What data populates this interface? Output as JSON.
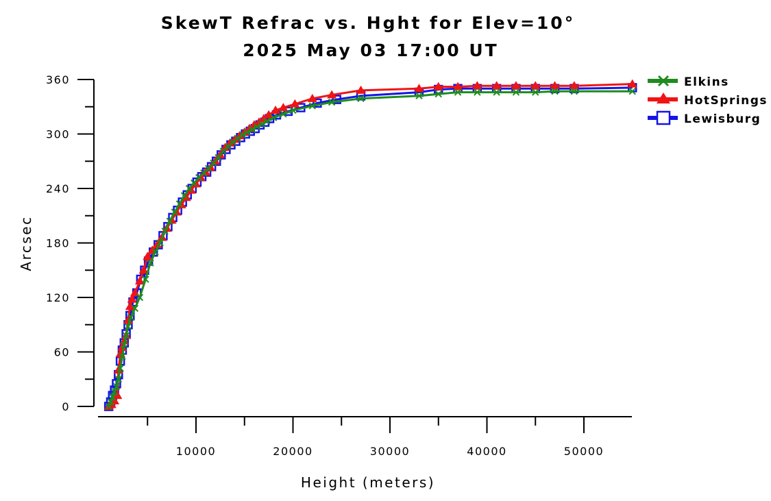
{
  "chart_data": {
    "type": "line",
    "title": "SkewT Refrac vs. Hght for Elev=10°",
    "subtitle": "2025 May 03 17:00 UT",
    "xlabel": "Height (meters)",
    "ylabel": "Arcsec",
    "xlim": [
      500,
      55000
    ],
    "ylim": [
      0,
      360
    ],
    "x_ticks": [
      10000,
      20000,
      30000,
      40000,
      50000
    ],
    "x_tick_labels": [
      "10000",
      "20000",
      "30000",
      "40000",
      "50000"
    ],
    "y_ticks": [
      0,
      60,
      120,
      180,
      240,
      300,
      360
    ],
    "y_tick_labels": [
      "0",
      "60",
      "120",
      "180",
      "240",
      "300",
      "360"
    ],
    "grid": false,
    "legend_position": "top-right, outside plot",
    "series": [
      {
        "name": "Elkins",
        "color": "#1e8c1e",
        "marker": "x",
        "points": [
          [
            1000,
            0
          ],
          [
            1200,
            5
          ],
          [
            1400,
            10
          ],
          [
            1600,
            16
          ],
          [
            1800,
            22
          ],
          [
            2000,
            30
          ],
          [
            2200,
            42
          ],
          [
            2400,
            55
          ],
          [
            2600,
            68
          ],
          [
            2800,
            78
          ],
          [
            3000,
            88
          ],
          [
            3300,
            98
          ],
          [
            3700,
            108
          ],
          [
            4200,
            120
          ],
          [
            4800,
            140
          ],
          [
            5300,
            158
          ],
          [
            5800,
            170
          ],
          [
            6300,
            180
          ],
          [
            6800,
            193
          ],
          [
            7300,
            204
          ],
          [
            7800,
            214
          ],
          [
            8300,
            223
          ],
          [
            8800,
            232
          ],
          [
            9300,
            240
          ],
          [
            9800,
            246
          ],
          [
            10300,
            252
          ],
          [
            10800,
            257
          ],
          [
            11300,
            262
          ],
          [
            11800,
            268
          ],
          [
            12300,
            274
          ],
          [
            12800,
            281
          ],
          [
            13300,
            286
          ],
          [
            13800,
            291
          ],
          [
            14300,
            295
          ],
          [
            14800,
            299
          ],
          [
            15300,
            302
          ],
          [
            15800,
            305
          ],
          [
            16300,
            308
          ],
          [
            16800,
            311
          ],
          [
            17300,
            314
          ],
          [
            18000,
            318
          ],
          [
            19000,
            322
          ],
          [
            20000,
            326
          ],
          [
            22000,
            331
          ],
          [
            24000,
            335
          ],
          [
            27000,
            339
          ],
          [
            33000,
            342
          ],
          [
            35000,
            344
          ],
          [
            37000,
            346
          ],
          [
            39000,
            346
          ],
          [
            41000,
            346
          ],
          [
            43000,
            346
          ],
          [
            45000,
            346
          ],
          [
            47000,
            347
          ],
          [
            49000,
            347
          ],
          [
            55000,
            347
          ]
        ]
      },
      {
        "name": "HotSprings",
        "color": "#f01414",
        "marker": "triangle",
        "points": [
          [
            1000,
            0
          ],
          [
            1300,
            2
          ],
          [
            1600,
            6
          ],
          [
            1900,
            12
          ],
          [
            2000,
            40
          ],
          [
            2200,
            58
          ],
          [
            2400,
            65
          ],
          [
            2600,
            72
          ],
          [
            2800,
            78
          ],
          [
            3000,
            95
          ],
          [
            3200,
            110
          ],
          [
            3400,
            118
          ],
          [
            3700,
            125
          ],
          [
            4200,
            138
          ],
          [
            4600,
            150
          ],
          [
            5000,
            165
          ],
          [
            5500,
            172
          ],
          [
            6000,
            178
          ],
          [
            6500,
            186
          ],
          [
            7000,
            196
          ],
          [
            7500,
            205
          ],
          [
            8000,
            214
          ],
          [
            8500,
            222
          ],
          [
            9000,
            230
          ],
          [
            9500,
            238
          ],
          [
            10000,
            245
          ],
          [
            10500,
            252
          ],
          [
            11000,
            258
          ],
          [
            11500,
            263
          ],
          [
            12000,
            270
          ],
          [
            12500,
            277
          ],
          [
            13000,
            285
          ],
          [
            13500,
            290
          ],
          [
            14000,
            294
          ],
          [
            14500,
            298
          ],
          [
            15000,
            302
          ],
          [
            15500,
            306
          ],
          [
            16000,
            310
          ],
          [
            16500,
            313
          ],
          [
            17000,
            317
          ],
          [
            17500,
            321
          ],
          [
            18200,
            326
          ],
          [
            19000,
            329
          ],
          [
            20200,
            333
          ],
          [
            22000,
            339
          ],
          [
            24000,
            343
          ],
          [
            27000,
            348
          ],
          [
            33000,
            350
          ],
          [
            35000,
            352
          ],
          [
            37000,
            352
          ],
          [
            39000,
            353
          ],
          [
            41000,
            353
          ],
          [
            43000,
            353
          ],
          [
            45000,
            353
          ],
          [
            47000,
            353
          ],
          [
            49000,
            353
          ],
          [
            55000,
            355
          ]
        ]
      },
      {
        "name": "Lewisburg",
        "color": "#1414e6",
        "marker": "square",
        "points": [
          [
            1000,
            0
          ],
          [
            1200,
            5
          ],
          [
            1400,
            12
          ],
          [
            1600,
            18
          ],
          [
            1800,
            25
          ],
          [
            2000,
            35
          ],
          [
            2200,
            50
          ],
          [
            2400,
            62
          ],
          [
            2600,
            70
          ],
          [
            2800,
            80
          ],
          [
            3000,
            90
          ],
          [
            3200,
            100
          ],
          [
            3500,
            115
          ],
          [
            3900,
            125
          ],
          [
            4300,
            140
          ],
          [
            4700,
            150
          ],
          [
            5100,
            160
          ],
          [
            5600,
            170
          ],
          [
            6100,
            178
          ],
          [
            6600,
            188
          ],
          [
            7100,
            198
          ],
          [
            7600,
            208
          ],
          [
            8100,
            216
          ],
          [
            8600,
            225
          ],
          [
            9100,
            233
          ],
          [
            9600,
            240
          ],
          [
            10100,
            247
          ],
          [
            10600,
            253
          ],
          [
            11100,
            258
          ],
          [
            11600,
            264
          ],
          [
            12100,
            270
          ],
          [
            12600,
            277
          ],
          [
            13100,
            283
          ],
          [
            13600,
            288
          ],
          [
            14100,
            292
          ],
          [
            14600,
            296
          ],
          [
            15100,
            300
          ],
          [
            15600,
            303
          ],
          [
            16100,
            306
          ],
          [
            16600,
            310
          ],
          [
            17100,
            313
          ],
          [
            17600,
            317
          ],
          [
            18300,
            321
          ],
          [
            19500,
            325
          ],
          [
            20800,
            329
          ],
          [
            22500,
            334
          ],
          [
            24500,
            338
          ],
          [
            27000,
            342
          ],
          [
            33000,
            346
          ],
          [
            35000,
            349
          ],
          [
            37000,
            350
          ],
          [
            39000,
            350
          ],
          [
            41000,
            350
          ],
          [
            43000,
            350
          ],
          [
            45000,
            350
          ],
          [
            47000,
            350
          ],
          [
            49000,
            350
          ],
          [
            55000,
            351
          ]
        ]
      }
    ]
  }
}
